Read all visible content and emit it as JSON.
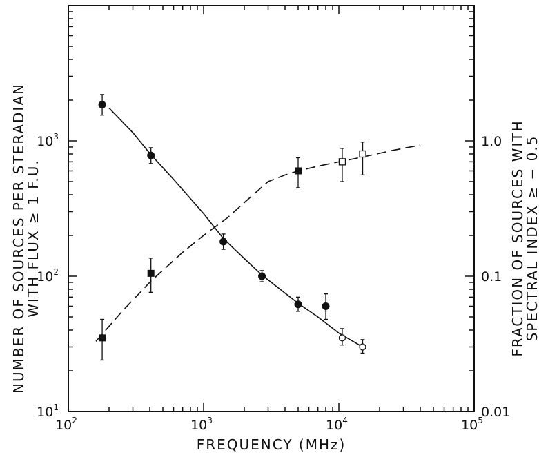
{
  "chart_data": {
    "type": "scatter",
    "title": "",
    "xlabel": "FREQUENCY (MHz)",
    "ylabel_left": [
      "NUMBER OF SOURCES PER STERADIAN",
      "WITH FLUX ≥ 1 F.U."
    ],
    "ylabel_right": [
      "FRACTION OF SOURCES WITH",
      "SPECTRAL INDEX ≥ − 0.5"
    ],
    "x_scale": "log",
    "y_scale": "log",
    "xlim": [
      100,
      100000
    ],
    "ylim_left": [
      10,
      10000
    ],
    "ylim_right": [
      0.01,
      10
    ],
    "x_ticks": [
      {
        "base": "10",
        "exp": "2",
        "v": 100
      },
      {
        "base": "10",
        "exp": "3",
        "v": 1000
      },
      {
        "base": "10",
        "exp": "4",
        "v": 10000
      },
      {
        "base": "10",
        "exp": "5",
        "v": 100000
      }
    ],
    "y_ticks_left": [
      {
        "base": "10",
        "exp": "1",
        "v": 10
      },
      {
        "base": "10",
        "exp": "2",
        "v": 100
      },
      {
        "base": "10",
        "exp": "3",
        "v": 1000
      }
    ],
    "y_ticks_right": [
      {
        "text": "0.01",
        "v": 0.01
      },
      {
        "text": "0.1",
        "v": 0.1
      },
      {
        "text": "1.0",
        "v": 1.0
      }
    ],
    "grid": false,
    "series": [
      {
        "axis": "left",
        "marker": "filled-circle",
        "points": [
          {
            "x": 178,
            "y": 1850,
            "err": [
              1550,
              2200
            ]
          },
          {
            "x": 408,
            "y": 780,
            "err": [
              680,
              890
            ]
          },
          {
            "x": 1400,
            "y": 180,
            "err": [
              158,
              205
            ]
          },
          {
            "x": 2700,
            "y": 100,
            "err": [
              91,
              110
            ]
          },
          {
            "x": 5000,
            "y": 62,
            "err": [
              55,
              70
            ]
          },
          {
            "x": 8000,
            "y": 60,
            "err": [
              48,
              74
            ]
          }
        ]
      },
      {
        "axis": "left",
        "marker": "open-circle",
        "points": [
          {
            "x": 10600,
            "y": 35,
            "err": [
              31,
              41
            ]
          },
          {
            "x": 15000,
            "y": 30,
            "err": [
              27,
              34
            ]
          }
        ]
      },
      {
        "axis": "right",
        "marker": "filled-square",
        "points": [
          {
            "x": 178,
            "y": 0.035,
            "err": [
              0.024,
              0.048
            ]
          },
          {
            "x": 408,
            "y": 0.105,
            "err": [
              0.076,
              0.136
            ]
          },
          {
            "x": 5000,
            "y": 0.6,
            "err": [
              0.45,
              0.75
            ]
          }
        ]
      },
      {
        "axis": "right",
        "marker": "open-square",
        "points": [
          {
            "x": 10600,
            "y": 0.7,
            "err": [
              0.5,
              0.88
            ]
          },
          {
            "x": 15000,
            "y": 0.8,
            "err": [
              0.56,
              0.98
            ]
          }
        ]
      }
    ],
    "curves": [
      {
        "axis": "left",
        "style": "solid",
        "points": [
          [
            200,
            1750
          ],
          [
            300,
            1150
          ],
          [
            408,
            790
          ],
          [
            600,
            520
          ],
          [
            1000,
            290
          ],
          [
            1400,
            190
          ],
          [
            2000,
            135
          ],
          [
            2700,
            102
          ],
          [
            4000,
            75
          ],
          [
            5000,
            63
          ],
          [
            7000,
            50
          ],
          [
            10000,
            38
          ],
          [
            15000,
            30
          ]
        ]
      },
      {
        "axis": "right",
        "style": "dashed",
        "points": [
          [
            160,
            0.033
          ],
          [
            250,
            0.055
          ],
          [
            408,
            0.092
          ],
          [
            700,
            0.15
          ],
          [
            1000,
            0.2
          ],
          [
            1500,
            0.27
          ],
          [
            2000,
            0.35
          ],
          [
            3000,
            0.5
          ],
          [
            4000,
            0.56
          ],
          [
            5000,
            0.6
          ],
          [
            7000,
            0.65
          ],
          [
            10000,
            0.7
          ],
          [
            15000,
            0.76
          ],
          [
            25000,
            0.85
          ],
          [
            40000,
            0.93
          ]
        ]
      }
    ]
  }
}
